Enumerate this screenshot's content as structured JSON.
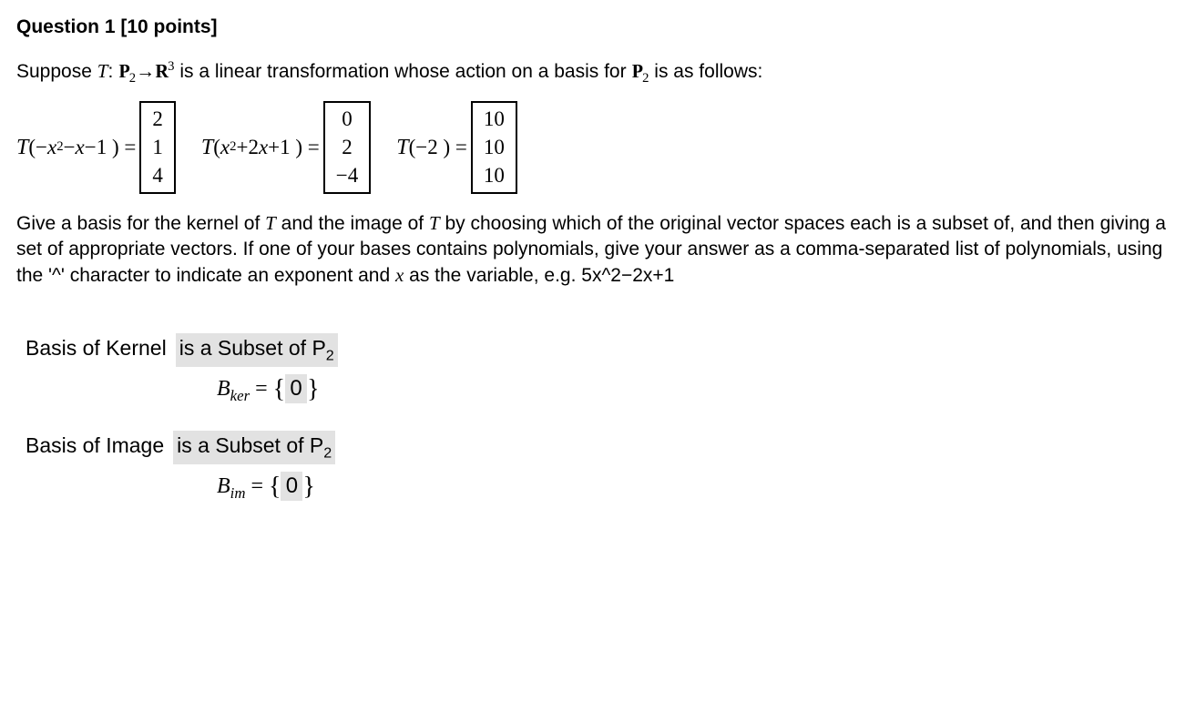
{
  "title": "Question 1 [10 points]",
  "intro_a": "Suppose ",
  "intro_T": "T",
  "intro_colon": ": ",
  "intro_P": "P",
  "intro_P_sub": "2",
  "intro_arrow": "→",
  "intro_R": "R",
  "intro_R_sup": "3",
  "intro_b": " is a linear transformation whose action on a basis for ",
  "intro_P2b": "P",
  "intro_P2b_sub": "2",
  "intro_c": " is as follows:",
  "eq1_lhs_a": "T",
  "eq1_lhs_b": "(−",
  "eq1_lhs_c": "x",
  "eq1_lhs_c_sup": "2",
  "eq1_lhs_d": "−",
  "eq1_lhs_e": "x",
  "eq1_lhs_f": "−1 ) =",
  "eq1_v1": "2",
  "eq1_v2": "1",
  "eq1_v3": "4",
  "eq2_lhs_a": "T",
  "eq2_lhs_b": "( ",
  "eq2_lhs_c": "x",
  "eq2_lhs_c_sup": "2",
  "eq2_lhs_d": "+2",
  "eq2_lhs_e": "x",
  "eq2_lhs_f": "+1 ) =",
  "eq2_v1": "0",
  "eq2_v2": "2",
  "eq2_v3": "−4",
  "eq3_lhs_a": "T",
  "eq3_lhs_b": "(−2 ) =",
  "eq3_v1": "10",
  "eq3_v2": "10",
  "eq3_v3": "10",
  "para2_a": "Give a basis for the kernel of ",
  "para2_T1": "T",
  "para2_b": " and the image of ",
  "para2_T2": "T",
  "para2_c": " by choosing which of the original vector spaces each is a subset of, and then giving a set of appropriate vectors. If one of your bases contains polynomials, give your answer as a comma-separated list of polynomials, using the '^' character to indicate an exponent and ",
  "para2_x": "x",
  "para2_d": " as the variable, e.g. 5x^2−2x+1",
  "kernel_label": "Basis of Kernel",
  "kernel_select": "is a Subset of P",
  "kernel_select_sub": "2",
  "kernel_B": "B",
  "kernel_B_sub": "ker",
  "kernel_eq": " = ",
  "kernel_val": "0",
  "image_label": "Basis of Image",
  "image_select": "is a Subset of P",
  "image_select_sub": "2",
  "image_B": "B",
  "image_B_sub": "im",
  "image_eq": " = ",
  "image_val": "0",
  "highlight_bg": "#e2e2e2"
}
